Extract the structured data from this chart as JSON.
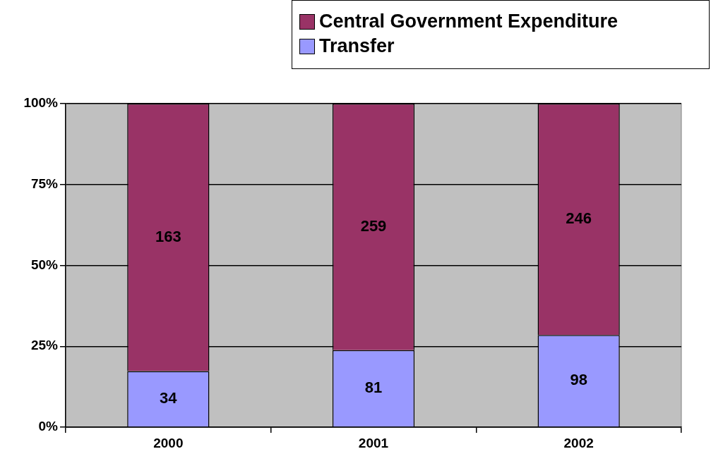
{
  "chart_data": {
    "type": "bar",
    "stacked": true,
    "categories": [
      "2000",
      "2001",
      "2002"
    ],
    "series": [
      {
        "name": "Transfer",
        "color": "#9999ff",
        "values": [
          17.3,
          23.8,
          28.5
        ]
      },
      {
        "name": "Central Government Expenditure",
        "color": "#993366",
        "values": [
          82.7,
          76.2,
          71.5
        ]
      }
    ],
    "annotations": [
      "34",
      "81",
      "98",
      "163",
      "259",
      "246"
    ],
    "ylim": [
      0,
      100
    ],
    "yticks": [
      {
        "value": 0,
        "label": "0%"
      },
      {
        "value": 25,
        "label": "25%"
      },
      {
        "value": 50,
        "label": "50%"
      },
      {
        "value": 75,
        "label": "75%"
      },
      {
        "value": 100,
        "label": "100%"
      }
    ],
    "grid": "y",
    "legend": "top right"
  }
}
